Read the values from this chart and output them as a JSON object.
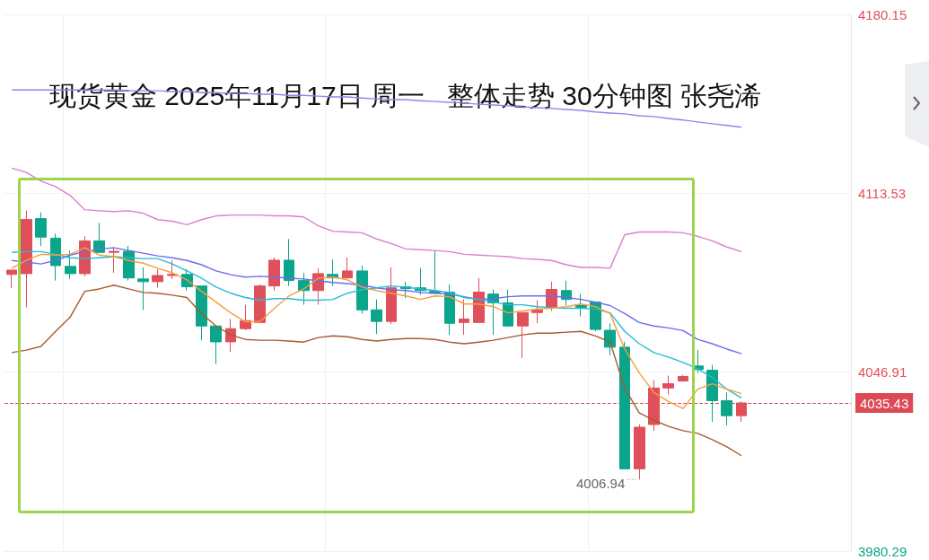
{
  "chart_data": {
    "type": "candlestick",
    "title": "现货黄金 2025年11月17日 周一   整体走势 30分钟图 张尧浠",
    "categories": [
      null,
      null,
      null,
      null,
      null,
      null,
      null,
      null,
      null,
      null,
      null,
      null,
      null,
      null,
      null,
      null,
      null,
      null,
      null,
      null,
      null,
      null,
      null,
      null,
      null,
      null,
      null,
      null,
      null,
      null,
      null,
      null,
      null,
      null,
      null,
      null,
      null,
      null,
      null,
      null,
      null,
      null,
      null,
      null,
      null,
      null,
      null,
      null,
      null,
      null,
      null
    ],
    "ylim": [
      3980.29,
      4180.15
    ],
    "yticks": [
      3980.29,
      4046.91,
      4113.53,
      4180.15
    ],
    "grid": true,
    "tick_labels": "y",
    "marker": "none",
    "series": [
      {
        "type": "candlestick",
        "ohlc": [
          [
            4083.3,
            4084.9,
            4078.3,
            4084.9
          ],
          [
            4083.6,
            4107.1,
            4071.0,
            4103.8
          ],
          [
            4104.1,
            4106.4,
            4093.9,
            4097.2
          ],
          [
            4096.8,
            4098.5,
            4081.0,
            4086.6
          ],
          [
            4086.3,
            4092.2,
            4081.6,
            4083.6
          ],
          [
            4083.6,
            4097.5,
            4082.6,
            4095.8
          ],
          [
            4095.8,
            4102.5,
            4091.5,
            4091.5
          ],
          [
            4091.5,
            4093.5,
            4083.9,
            4091.9
          ],
          [
            4091.9,
            4093.9,
            4081.0,
            4082.0
          ],
          [
            4081.6,
            4085.9,
            4070.1,
            4080.6
          ],
          [
            4080.6,
            4085.3,
            4078.3,
            4082.9
          ],
          [
            4082.9,
            4088.6,
            4081.6,
            4083.3
          ],
          [
            4083.3,
            4085.3,
            4077.3,
            4078.7
          ],
          [
            4079.0,
            4079.0,
            4058.8,
            4064.1
          ],
          [
            4064.1,
            4064.1,
            4049.9,
            4058.2
          ],
          [
            4058.2,
            4066.7,
            4054.5,
            4063.1
          ],
          [
            4063.1,
            4072.0,
            4062.5,
            4066.1
          ],
          [
            4065.4,
            4079.6,
            4065.4,
            4079.0
          ],
          [
            4079.0,
            4089.6,
            4077.3,
            4088.6
          ],
          [
            4088.6,
            4096.5,
            4079.0,
            4081.0
          ],
          [
            4081.0,
            4083.9,
            4072.0,
            4077.3
          ],
          [
            4077.3,
            4085.6,
            4072.0,
            4083.6
          ],
          [
            4083.3,
            4088.9,
            4079.0,
            4082.0
          ],
          [
            4082.0,
            4089.6,
            4082.0,
            4084.6
          ],
          [
            4084.6,
            4086.6,
            4068.7,
            4070.1
          ],
          [
            4070.1,
            4074.0,
            4061.1,
            4065.8
          ],
          [
            4065.8,
            4085.9,
            4064.8,
            4078.3
          ],
          [
            4078.7,
            4080.6,
            4074.4,
            4078.0
          ],
          [
            4078.3,
            4085.6,
            4075.7,
            4077.3
          ],
          [
            4077.0,
            4092.2,
            4076.3,
            4076.3
          ],
          [
            4076.7,
            4079.6,
            4060.8,
            4065.1
          ],
          [
            4065.4,
            4074.0,
            4060.8,
            4066.7
          ],
          [
            4065.4,
            4082.0,
            4065.4,
            4076.7
          ],
          [
            4076.0,
            4077.7,
            4060.8,
            4072.7
          ],
          [
            4072.7,
            4077.7,
            4063.8,
            4064.1
          ],
          [
            4064.1,
            4069.1,
            4052.2,
            4069.1
          ],
          [
            4069.1,
            4073.7,
            4065.1,
            4070.1
          ],
          [
            4071.0,
            4080.6,
            4069.7,
            4077.7
          ],
          [
            4077.3,
            4081.0,
            4071.7,
            4074.0
          ],
          [
            4071.7,
            4076.0,
            4067.7,
            4071.0
          ],
          [
            4073.0,
            4073.0,
            4062.1,
            4062.8
          ],
          [
            4062.5,
            4065.1,
            4053.2,
            4056.2
          ],
          [
            4056.2,
            4058.2,
            4010.9,
            4010.9
          ],
          [
            4010.9,
            4027.4,
            4006.94,
            4026.4
          ],
          [
            4027.4,
            4043.9,
            4025.1,
            4041.0
          ],
          [
            4041.0,
            4045.6,
            4038.6,
            4042.6
          ],
          [
            4043.6,
            4045.9,
            4043.3,
            4045.3
          ],
          [
            4049.2,
            4055.2,
            4046.6,
            4047.9
          ],
          [
            4047.6,
            4049.6,
            4028.4,
            4036.3
          ],
          [
            4036.3,
            4039.3,
            4027.1,
            4030.7
          ],
          [
            4030.7,
            4036.0,
            4028.4,
            4035.43
          ]
        ],
        "colors": [
          "#e0505a",
          "#e0505a",
          "#0aa58a",
          "#0aa58a",
          "#0aa58a",
          "#e0505a",
          "#0aa58a",
          "#e0505a",
          "#0aa58a",
          "#0aa58a",
          "#e0505a",
          "#e0505a",
          "#0aa58a",
          "#0aa58a",
          "#0aa58a",
          "#e0505a",
          "#e0505a",
          "#e0505a",
          "#e0505a",
          "#0aa58a",
          "#0aa58a",
          "#e0505a",
          "#0aa58a",
          "#e0505a",
          "#0aa58a",
          "#0aa58a",
          "#e0505a",
          "#0aa58a",
          "#0aa58a",
          "#0aa58a",
          "#0aa58a",
          "#e0505a",
          "#e0505a",
          "#0aa58a",
          "#0aa58a",
          "#e0505a",
          "#e0505a",
          "#e0505a",
          "#0aa58a",
          "#0aa58a",
          "#0aa58a",
          "#0aa58a",
          "#0aa58a",
          "#e0505a",
          "#e0505a",
          "#e0505a",
          "#e0505a",
          "#0aa58a",
          "#0aa58a",
          "#0aa58a",
          "#e0505a"
        ]
      },
      {
        "type": "line",
        "color": "#9b80e6",
        "values": [
          4152.0,
          4152.0,
          4152.0,
          4152.0,
          4152.0,
          4152.0,
          4152.0,
          4152.0,
          4151.7,
          4151.7,
          4151.7,
          4151.4,
          4151.4,
          4151.0,
          4151.0,
          4150.7,
          4150.7,
          4150.4,
          4150.4,
          4150.0,
          4150.0,
          4149.7,
          4149.4,
          4149.4,
          4149.0,
          4148.7,
          4148.4,
          4148.4,
          4148.0,
          4147.7,
          4147.4,
          4147.1,
          4146.7,
          4146.4,
          4146.1,
          4145.7,
          4145.4,
          4145.1,
          4144.7,
          4144.4,
          4143.8,
          4143.4,
          4143.1,
          4142.4,
          4142.1,
          4141.4,
          4140.8,
          4140.1,
          4139.4,
          4138.8,
          4138.1
        ]
      },
      {
        "type": "line",
        "color": "#dc7ed2",
        "values": [
          4122.9,
          4121.3,
          4118.0,
          4116.0,
          4112.7,
          4107.4,
          4107.0,
          4106.7,
          4107.0,
          4106.1,
          4103.7,
          4103.1,
          4101.8,
          4103.7,
          4105.1,
          4105.4,
          4105.4,
          4105.4,
          4105.1,
          4105.1,
          4104.7,
          4101.4,
          4099.4,
          4099.1,
          4098.8,
          4096.5,
          4094.8,
          4092.8,
          4092.5,
          4092.2,
          4091.8,
          4090.8,
          4090.5,
          4090.2,
          4089.9,
          4089.2,
          4088.9,
          4088.5,
          4086.9,
          4085.9,
          4085.9,
          4085.6,
          4098.1,
          4099.1,
          4099.1,
          4099.1,
          4098.8,
          4097.5,
          4095.8,
          4093.5,
          4091.8
        ]
      },
      {
        "type": "line",
        "color": "#6b6cf0",
        "values": [
          4088.5,
          4087.9,
          4087.2,
          4088.5,
          4090.5,
          4091.8,
          4092.8,
          4093.2,
          4092.2,
          4091.2,
          4090.2,
          4089.5,
          4088.5,
          4086.9,
          4084.6,
          4083.2,
          4082.3,
          4082.6,
          4082.3,
          4081.9,
          4081.6,
          4080.9,
          4080.3,
          4079.9,
          4079.3,
          4078.3,
          4077.6,
          4077.3,
          4076.6,
          4076.3,
          4076.0,
          4075.0,
          4074.0,
          4074.3,
          4075.0,
          4075.3,
          4075.3,
          4075.3,
          4074.7,
          4074.0,
          4073.0,
          4071.7,
          4068.7,
          4065.4,
          4064.1,
          4063.4,
          4062.4,
          4059.1,
          4057.5,
          4055.5,
          4053.8
        ]
      },
      {
        "type": "line",
        "color": "#22bcd6",
        "values": [
          4091.5,
          4091.8,
          4091.8,
          4090.8,
          4089.5,
          4089.2,
          4089.5,
          4089.9,
          4089.5,
          4089.2,
          4089.2,
          4087.2,
          4084.6,
          4081.9,
          4078.6,
          4076.3,
          4074.7,
          4073.7,
          4074.3,
          4074.3,
          4073.7,
          4073.7,
          4074.0,
          4076.3,
          4077.6,
          4078.3,
          4079.0,
          4078.6,
          4077.9,
          4077.3,
          4076.6,
          4074.7,
          4074.0,
          4073.0,
          4072.0,
          4072.0,
          4071.3,
          4071.0,
          4070.7,
          4070.7,
          4070.4,
          4069.0,
          4062.1,
          4057.5,
          4054.2,
          4052.5,
          4050.5,
          4048.2,
          4044.9,
          4040.6,
          4037.3
        ]
      },
      {
        "type": "line",
        "color": "#f79d3c",
        "values": [
          4085.6,
          4088.5,
          4090.8,
          4090.5,
          4090.8,
          4093.2,
          4090.5,
          4089.9,
          4088.5,
          4087.5,
          4085.6,
          4083.9,
          4081.3,
          4077.0,
          4073.0,
          4069.0,
          4065.7,
          4065.7,
          4070.7,
          4075.3,
          4077.9,
          4081.9,
          4082.3,
          4081.3,
          4078.6,
          4077.3,
          4076.3,
          4075.3,
          4074.0,
          4075.3,
          4075.0,
          4072.3,
          4072.3,
          4071.3,
          4069.0,
          4069.7,
          4070.4,
          4070.7,
          4071.3,
          4072.3,
          4071.3,
          4068.7,
          4055.5,
          4046.6,
          4039.3,
          4036.0,
          4033.3,
          4040.6,
          4042.6,
          4040.6,
          4038.9
        ]
      },
      {
        "type": "line",
        "color": "#a65a2e",
        "values": [
          4054.2,
          4055.1,
          4056.5,
          4062.1,
          4067.4,
          4077.0,
          4077.9,
          4079.3,
          4077.9,
          4076.6,
          4076.3,
          4075.6,
          4074.7,
          4068.7,
          4064.1,
          4060.8,
          4059.1,
          4058.8,
          4058.8,
          4058.5,
          4058.1,
          4059.8,
          4060.4,
          4060.1,
          4059.1,
          4058.5,
          4059.1,
          4059.4,
          4059.4,
          4059.1,
          4058.1,
          4057.5,
          4058.1,
          4058.8,
          4059.8,
          4060.8,
          4061.4,
          4061.4,
          4061.8,
          4062.1,
          4060.4,
          4058.1,
          4040.9,
          4031.7,
          4029.0,
          4026.7,
          4025.1,
          4024.1,
          4021.8,
          4019.1,
          4015.8
        ]
      }
    ],
    "ref_lines": [
      {
        "axis": "y",
        "value": 4035.43,
        "label": "4035.43",
        "color": "#dc4a55",
        "line_style": "dashed"
      }
    ],
    "annotations": [
      "4006.94"
    ]
  }
}
